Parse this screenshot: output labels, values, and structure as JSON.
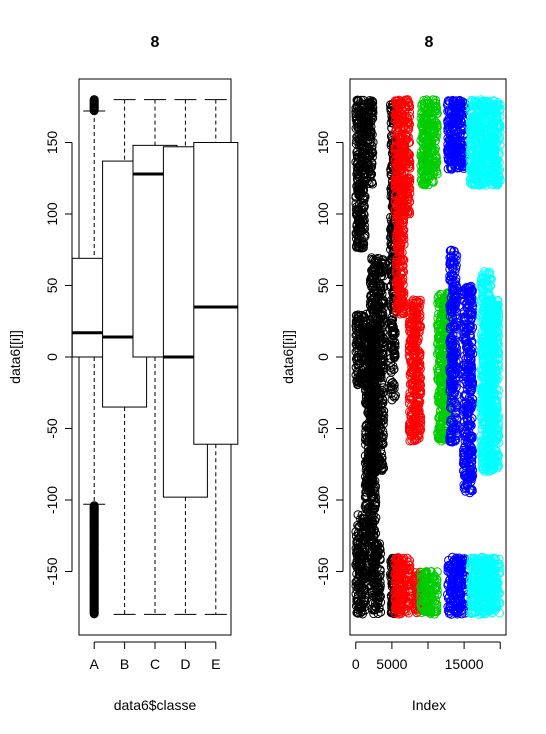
{
  "chart_data": [
    {
      "type": "box",
      "title": "8",
      "xlabel": "data6$classe",
      "ylabel": "data6[[i]]",
      "categories": [
        "A",
        "B",
        "C",
        "D",
        "E"
      ],
      "ylim": [
        -180,
        180
      ],
      "yticks": [
        -150,
        -100,
        -50,
        0,
        50,
        100,
        150
      ],
      "boxes": [
        {
          "category": "A",
          "whisker_low": -103,
          "q1": 0,
          "median": 17,
          "q3": 69,
          "whisker_high": 172,
          "outliers_low": [
            -104,
            -180
          ],
          "outliers_high": [
            172,
            180
          ]
        },
        {
          "category": "B",
          "whisker_low": -180,
          "q1": -35,
          "median": 14,
          "q3": 137,
          "whisker_high": 180
        },
        {
          "category": "C",
          "whisker_low": -180,
          "q1": 0,
          "median": 128,
          "q3": 148,
          "whisker_high": 180
        },
        {
          "category": "D",
          "whisker_low": -180,
          "q1": -98,
          "median": 0,
          "q3": 147,
          "whisker_high": 180
        },
        {
          "category": "E",
          "whisker_low": -180,
          "q1": -61,
          "median": 35,
          "q3": 150,
          "whisker_high": 180
        }
      ]
    },
    {
      "type": "scatter",
      "title": "8",
      "xlabel": "Index",
      "ylabel": "data6[[i]]",
      "xlim": [
        0,
        20000
      ],
      "ylim": [
        -180,
        180
      ],
      "xticks": [
        0,
        5000,
        15000
      ],
      "xtick_labels": [
        "0",
        "5000",
        "15000"
      ],
      "yticks": [
        -150,
        -100,
        -50,
        0,
        50,
        100,
        150
      ],
      "series": [
        {
          "color": "#000000",
          "clusters": [
            {
              "x": [
                0,
                1300
              ],
              "y": [
                75,
                180
              ]
            },
            {
              "x": [
                0,
                1300
              ],
              "y": [
                -180,
                -110
              ]
            },
            {
              "x": [
                0,
                1500
              ],
              "y": [
                -20,
                30
              ]
            },
            {
              "x": [
                1300,
                2800
              ],
              "y": [
                -130,
                20
              ]
            },
            {
              "x": [
                2000,
                3900
              ],
              "y": [
                -80,
                70
              ]
            },
            {
              "x": [
                2200,
                3500
              ],
              "y": [
                -180,
                -130
              ]
            },
            {
              "x": [
                1400,
                2400
              ],
              "y": [
                120,
                180
              ]
            },
            {
              "x": [
                4800,
                5500
              ],
              "y": [
                -30,
                180
              ]
            },
            {
              "x": [
                4800,
                5500
              ],
              "y": [
                -180,
                -140
              ]
            }
          ]
        },
        {
          "color": "#ff0000",
          "clusters": [
            {
              "x": [
                5400,
                7500
              ],
              "y": [
                100,
                180
              ]
            },
            {
              "x": [
                5400,
                7500
              ],
              "y": [
                -180,
                -140
              ]
            },
            {
              "x": [
                5600,
                6700
              ],
              "y": [
                30,
                100
              ]
            },
            {
              "x": [
                7400,
                9000
              ],
              "y": [
                -60,
                40
              ]
            },
            {
              "x": [
                8200,
                9000
              ],
              "y": [
                -180,
                -150
              ]
            }
          ]
        },
        {
          "color": "#00cd00",
          "clusters": [
            {
              "x": [
                9000,
                11300
              ],
              "y": [
                120,
                180
              ]
            },
            {
              "x": [
                9000,
                11300
              ],
              "y": [
                -180,
                -150
              ]
            },
            {
              "x": [
                11300,
                13000
              ],
              "y": [
                -60,
                45
              ]
            }
          ]
        },
        {
          "color": "#0000ff",
          "clusters": [
            {
              "x": [
                12700,
                15200
              ],
              "y": [
                130,
                180
              ]
            },
            {
              "x": [
                12700,
                15200
              ],
              "y": [
                -180,
                -140
              ]
            },
            {
              "x": [
                13000,
                14000
              ],
              "y": [
                -60,
                75
              ]
            },
            {
              "x": [
                14900,
                16200
              ],
              "y": [
                -95,
                50
              ]
            }
          ]
        },
        {
          "color": "#00ffff",
          "clusters": [
            {
              "x": [
                15800,
                20000
              ],
              "y": [
                120,
                180
              ]
            },
            {
              "x": [
                15800,
                20000
              ],
              "y": [
                -180,
                -140
              ]
            },
            {
              "x": [
                17300,
                18800
              ],
              "y": [
                -80,
                60
              ]
            },
            {
              "x": [
                18300,
                19800
              ],
              "y": [
                -80,
                40
              ]
            }
          ]
        }
      ]
    }
  ]
}
